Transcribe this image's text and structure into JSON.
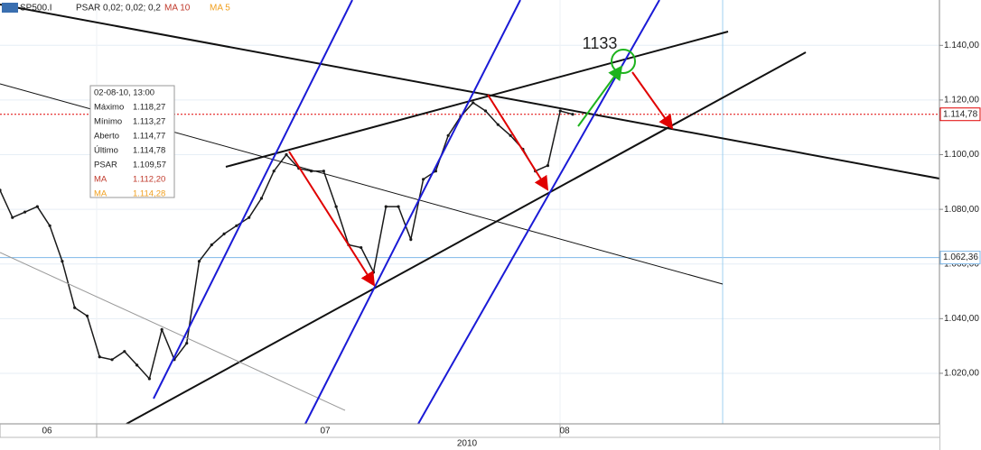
{
  "chart_data": {
    "type": "line",
    "header": {
      "symbol": "SP500.I",
      "psar": "PSAR 0,02; 0,02; 0,2",
      "ma10": "MA 10",
      "ma5": "MA 5"
    },
    "series": [
      {
        "name": "SP500.I",
        "color": "#1a1a1a",
        "values": [
          1087,
          1077,
          1079,
          1081,
          1074,
          1061,
          1044,
          1041,
          1026,
          1025,
          1028,
          1023,
          1018,
          1036,
          1025,
          1031,
          1061,
          1067,
          1071,
          1074,
          1077,
          1084,
          1094,
          1100,
          1095,
          1094,
          1094,
          1081,
          1067,
          1066,
          1057,
          1081,
          1081,
          1069,
          1091,
          1094,
          1107,
          1114,
          1119,
          1116,
          1111,
          1107,
          1102,
          1094,
          1096,
          1116,
          1114.78
        ]
      }
    ],
    "ylim": [
      1001.5,
      1156.6
    ],
    "yticks": [
      {
        "value": 1020,
        "label": "1.020,00"
      },
      {
        "value": 1040,
        "label": "1.040,00"
      },
      {
        "value": 1060,
        "label": "1.060,00"
      },
      {
        "value": 1080,
        "label": "1.080,00"
      },
      {
        "value": 1100,
        "label": "1.100,00"
      },
      {
        "value": 1120,
        "label": "1.120,00"
      },
      {
        "value": 1140,
        "label": "1.140,00"
      }
    ],
    "grid": true,
    "price_labels": [
      {
        "value": 1114.78,
        "label": "1.114,78",
        "color": "#e00000"
      },
      {
        "value": 1062.36,
        "label": "1.062,36",
        "color": "#7fb8e8"
      }
    ],
    "period_labels": [
      "06",
      "07",
      "08"
    ],
    "year_label": "2010",
    "annotation": "1133",
    "tooltip": {
      "date": "02-08-10, 13:00",
      "rows": [
        [
          "Máximo",
          "1.118,27"
        ],
        [
          "Mínimo",
          "1.113,27"
        ],
        [
          "Aberto",
          "1.114,77"
        ],
        [
          "Último",
          "1.114,78"
        ],
        [
          "PSAR",
          "1.109,57"
        ],
        [
          "MA",
          "1.112,20"
        ],
        [
          "MA",
          "1.114,28"
        ]
      ]
    }
  }
}
